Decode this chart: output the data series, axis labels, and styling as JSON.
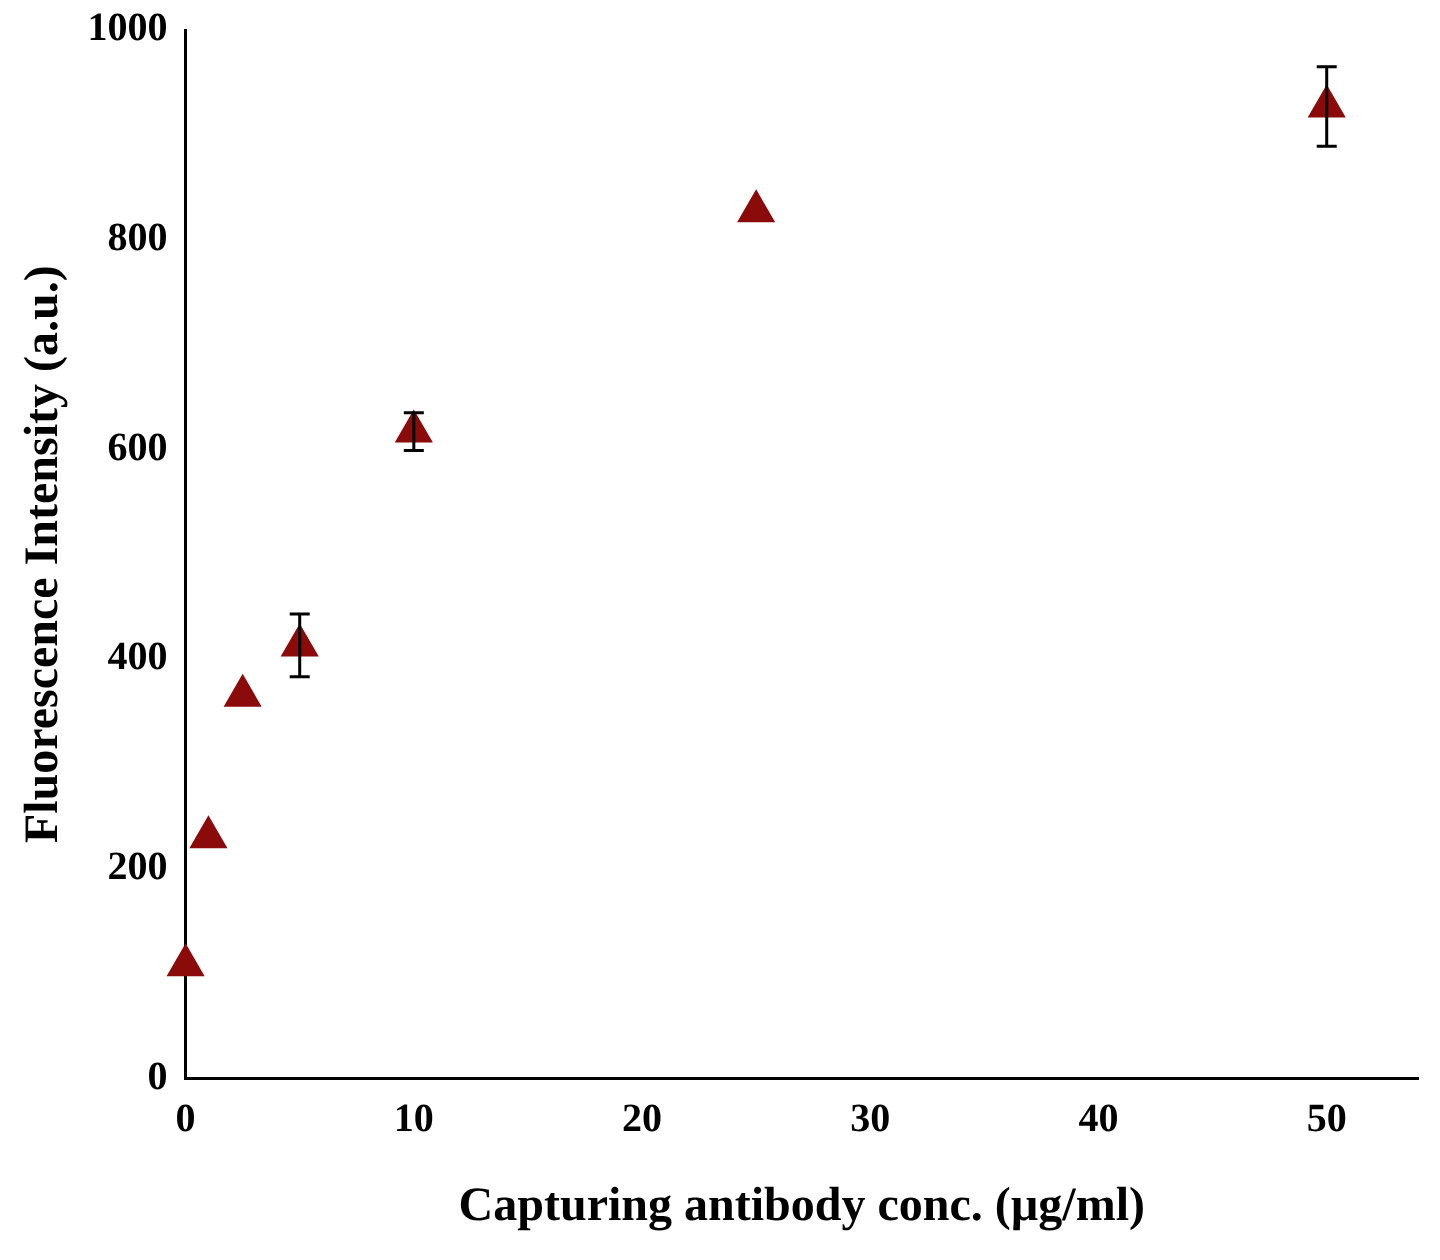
{
  "chart_data": {
    "type": "scatter",
    "xlabel": "Capturing antibody conc. (µg/ml)",
    "ylabel": "Fluorescence Intensity (a.u.)",
    "x": [
      0,
      1,
      2.5,
      5,
      10,
      25,
      50
    ],
    "series": [
      {
        "color": "#8b0a0a",
        "values": [
          108,
          230,
          365,
          413,
          617,
          827,
          927
        ],
        "errors": [
          null,
          null,
          null,
          30,
          18,
          null,
          38
        ]
      }
    ],
    "xlim": [
      0,
      54
    ],
    "xticks": [
      0,
      10,
      20,
      30,
      40,
      50
    ],
    "ylim": [
      0,
      1000
    ],
    "yticks": [
      0,
      200,
      400,
      600,
      800,
      1000
    ],
    "grid": false,
    "legend": false,
    "marker": "triangle"
  }
}
